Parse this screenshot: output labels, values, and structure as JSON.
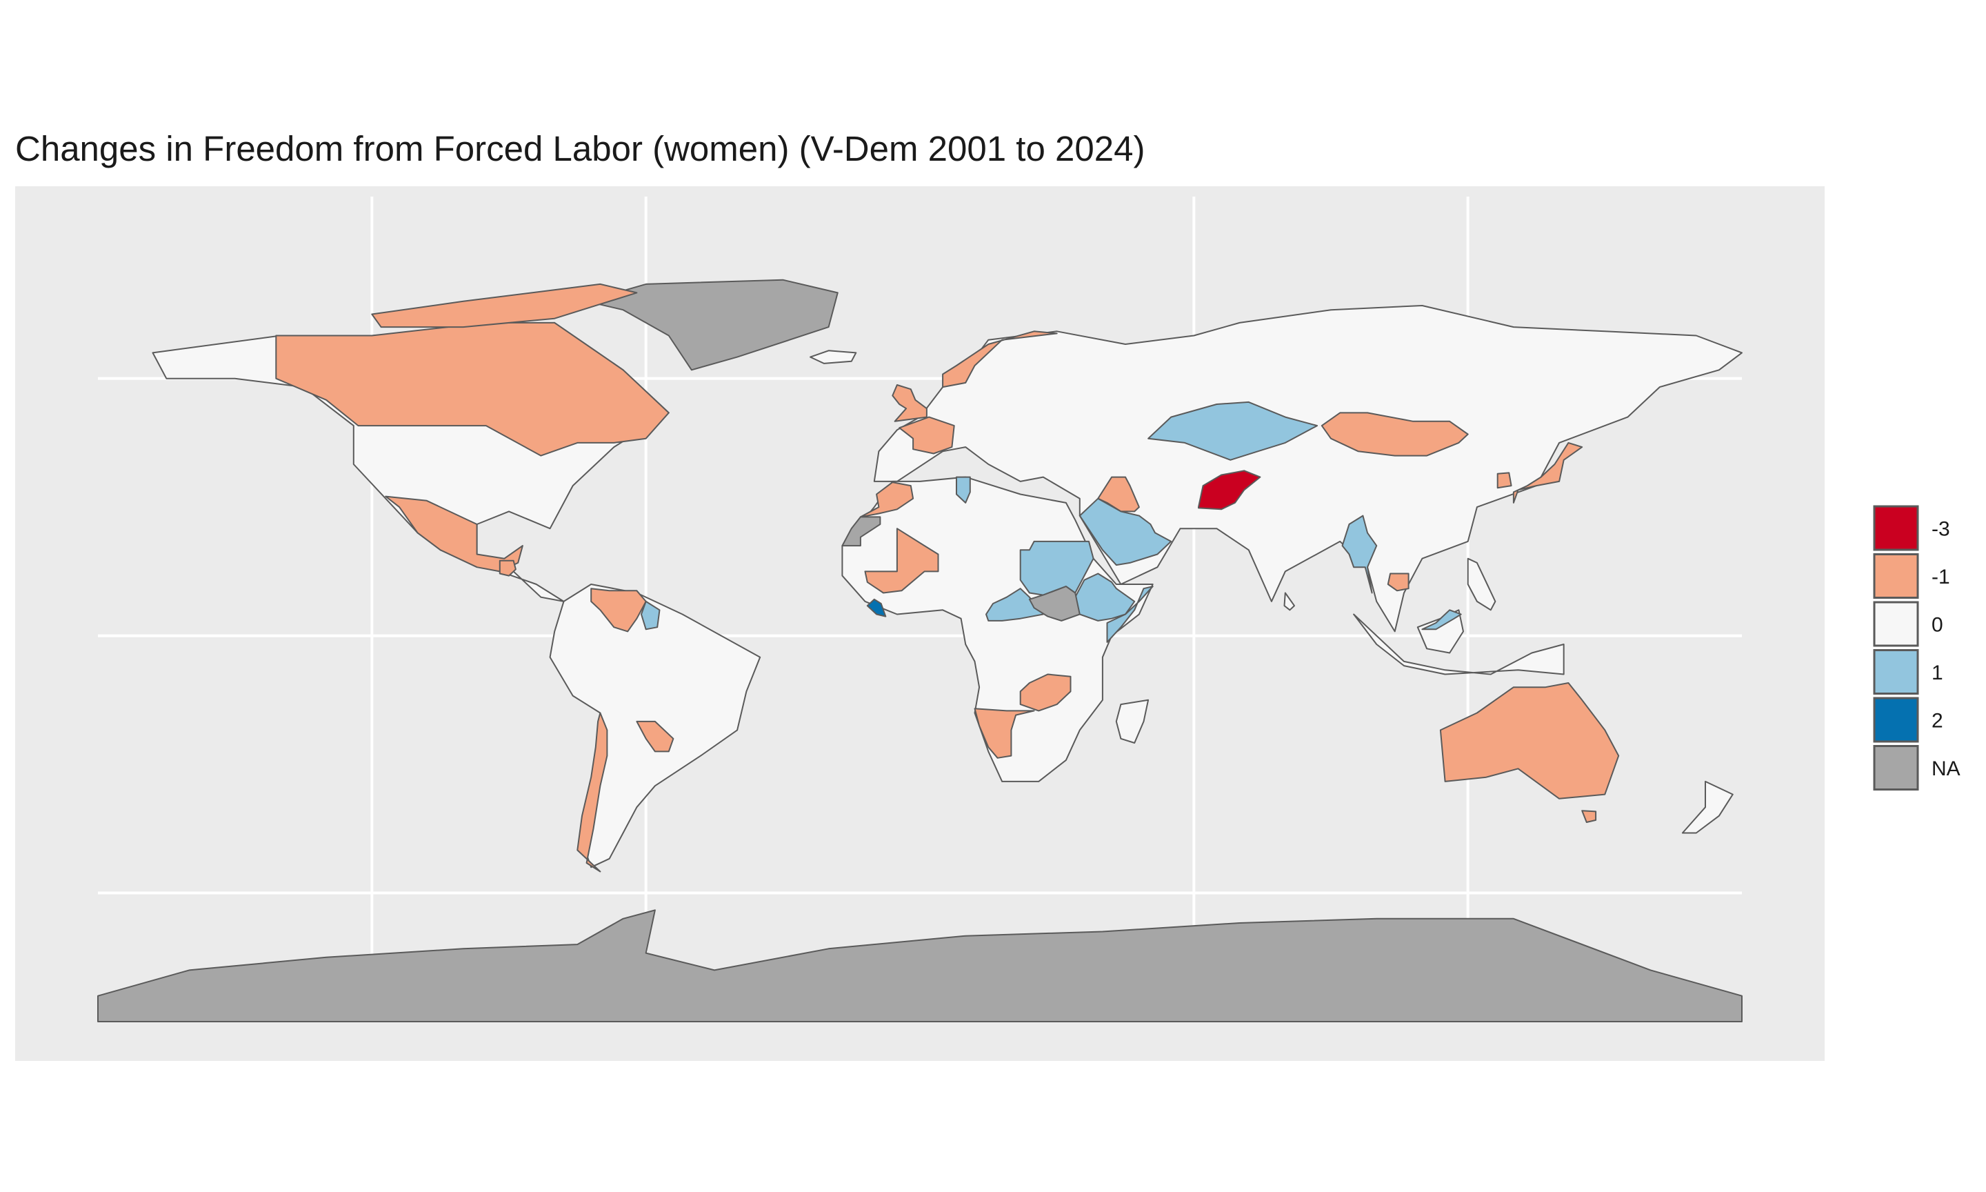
{
  "title": "Changes in Freedom from Forced Labor (women) (V-Dem 2001 to 2024)",
  "colors": {
    "panel_background": "#ebebeb",
    "grid": "#ffffff",
    "border": "#5a5a5a"
  },
  "legend": {
    "position": "right",
    "items": [
      {
        "value": "-3",
        "color": "#ca0020"
      },
      {
        "value": "-1",
        "color": "#f4a582"
      },
      {
        "value": "0",
        "color": "#f7f7f7"
      },
      {
        "value": "1",
        "color": "#92c5de"
      },
      {
        "value": "2",
        "color": "#0571b0"
      },
      {
        "value": "NA",
        "color": "#a6a6a6"
      }
    ]
  },
  "chart_data": {
    "type": "choropleth",
    "projection": "equirectangular",
    "grid": true,
    "values_by_region": {
      "Afghanistan": -3,
      "Canada": -1,
      "Mexico": -1,
      "Guatemala": -1,
      "Venezuela": -1,
      "Paraguay": -1,
      "Chile": -1,
      "United Kingdom": -1,
      "France": -1,
      "Norway": -1,
      "Morocco": -1,
      "Mali": -1,
      "Iraq": -1,
      "Mongolia": -1,
      "South Korea": -1,
      "Japan": -1,
      "Cambodia": -1,
      "Zambia": -1,
      "Namibia": -1,
      "Australia": -1,
      "United States": 0,
      "Brazil": 0,
      "Argentina": 0,
      "Russia": 0,
      "China": 0,
      "India": 0,
      "Iran": 0,
      "Algeria": 0,
      "DR Congo": 0,
      "South Africa": 0,
      "Sudan": 1,
      "Saudi Arabia": 1,
      "Ethiopia": 1,
      "Myanmar": 1,
      "Kazakhstan": 1,
      "Somalia": 1,
      "Liberia": 2,
      "Greenland": "NA",
      "Antarctica": "NA",
      "South Sudan": "NA",
      "Western Sahara": "NA"
    }
  }
}
